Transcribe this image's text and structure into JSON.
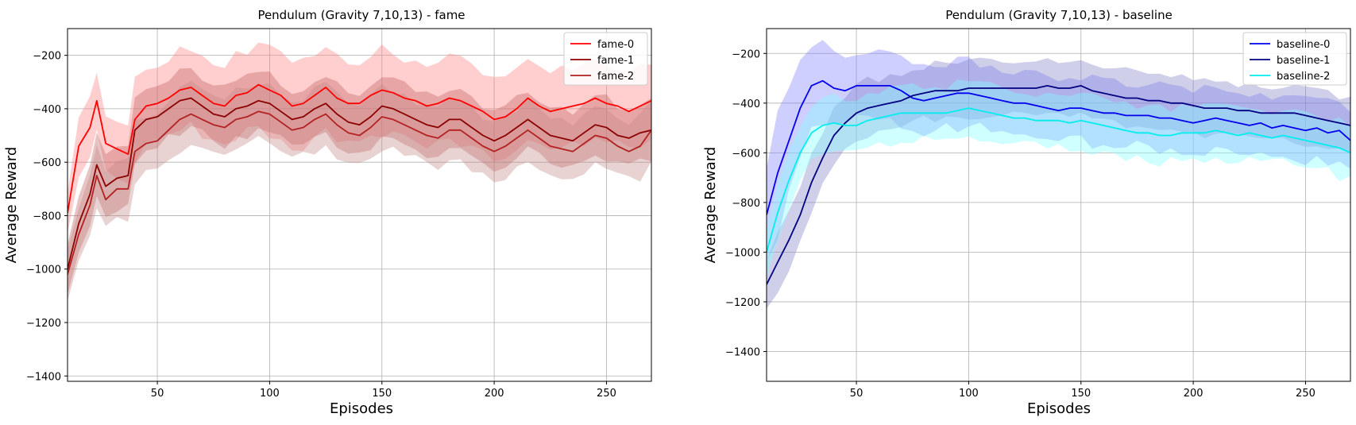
{
  "chart_data": [
    {
      "type": "line",
      "title": "Pendulum (Gravity 7,10,13) - fame",
      "xlabel": "Episodes",
      "ylabel": "Average Reward",
      "xlim": [
        10,
        270
      ],
      "ylim": [
        -1420,
        -100
      ],
      "xticks": [
        50,
        100,
        150,
        200,
        250
      ],
      "yticks": [
        -1400,
        -1200,
        -1000,
        -800,
        -600,
        -400,
        -200
      ],
      "grid": true,
      "legend_position": "top-right",
      "series": [
        {
          "name": "fame-0",
          "color": "#ff0000",
          "band_color": "#ff8080",
          "x": [
            10,
            15,
            20,
            23,
            27,
            32,
            37,
            40,
            45,
            50,
            55,
            60,
            65,
            70,
            75,
            80,
            85,
            90,
            95,
            100,
            105,
            110,
            115,
            120,
            125,
            130,
            135,
            140,
            145,
            150,
            155,
            160,
            165,
            170,
            175,
            180,
            185,
            190,
            195,
            200,
            205,
            210,
            215,
            220,
            225,
            230,
            235,
            240,
            245,
            250,
            255,
            260,
            265,
            270
          ],
          "y": [
            -790,
            -540,
            -470,
            -370,
            -530,
            -550,
            -570,
            -440,
            -390,
            -380,
            -360,
            -330,
            -320,
            -350,
            -380,
            -390,
            -350,
            -340,
            -310,
            -330,
            -350,
            -390,
            -380,
            -350,
            -320,
            -360,
            -380,
            -380,
            -350,
            -330,
            -340,
            -360,
            -370,
            -390,
            -380,
            -360,
            -370,
            -390,
            -410,
            -440,
            -430,
            -400,
            -360,
            -390,
            -410,
            -400,
            -390,
            -380,
            -360,
            -380,
            -390,
            -410,
            -390,
            -370
          ],
          "spread": [
            90,
            110,
            120,
            120,
            110,
            110,
            110,
            140,
            150,
            150,
            150,
            150,
            150,
            150,
            150,
            150,
            150,
            150,
            150,
            150,
            150,
            150,
            150,
            150,
            150,
            150,
            150,
            150,
            150,
            150,
            150,
            150,
            150,
            150,
            150,
            150,
            150,
            150,
            150,
            150,
            150,
            150,
            150,
            150,
            150,
            150,
            150,
            150,
            150,
            150,
            150,
            150,
            150,
            150
          ]
        },
        {
          "name": "fame-1",
          "color": "#8b0000",
          "band_color": "#c06060",
          "x": [
            10,
            15,
            20,
            23,
            27,
            32,
            37,
            40,
            45,
            50,
            55,
            60,
            65,
            70,
            75,
            80,
            85,
            90,
            95,
            100,
            105,
            110,
            115,
            120,
            125,
            130,
            135,
            140,
            145,
            150,
            155,
            160,
            165,
            170,
            175,
            180,
            185,
            190,
            195,
            200,
            205,
            210,
            215,
            220,
            225,
            230,
            235,
            240,
            245,
            250,
            255,
            260,
            265,
            270
          ],
          "y": [
            -1000,
            -830,
            -720,
            -610,
            -690,
            -660,
            -650,
            -480,
            -440,
            -430,
            -400,
            -370,
            -360,
            -390,
            -420,
            -430,
            -400,
            -390,
            -370,
            -380,
            -410,
            -440,
            -430,
            -400,
            -380,
            -420,
            -450,
            -460,
            -430,
            -390,
            -400,
            -420,
            -440,
            -460,
            -470,
            -440,
            -440,
            -470,
            -500,
            -520,
            -500,
            -470,
            -440,
            -470,
            -500,
            -510,
            -520,
            -490,
            -460,
            -470,
            -500,
            -510,
            -490,
            -480
          ]
        },
        {
          "name": "fame-2",
          "color": "#b22222",
          "band_color": "#c48888",
          "x": [
            10,
            15,
            20,
            23,
            27,
            32,
            37,
            40,
            45,
            50,
            55,
            60,
            65,
            70,
            75,
            80,
            85,
            90,
            95,
            100,
            105,
            110,
            115,
            120,
            125,
            130,
            135,
            140,
            145,
            150,
            155,
            160,
            165,
            170,
            175,
            180,
            185,
            190,
            195,
            200,
            205,
            210,
            215,
            220,
            225,
            230,
            235,
            240,
            245,
            250,
            255,
            260,
            265,
            270
          ],
          "y": [
            -1020,
            -870,
            -760,
            -650,
            -740,
            -700,
            -700,
            -560,
            -530,
            -520,
            -480,
            -440,
            -420,
            -440,
            -460,
            -470,
            -440,
            -430,
            -410,
            -420,
            -450,
            -480,
            -470,
            -440,
            -420,
            -460,
            -490,
            -500,
            -470,
            -430,
            -440,
            -460,
            -480,
            -500,
            -510,
            -480,
            -480,
            -510,
            -540,
            -560,
            -540,
            -510,
            -480,
            -510,
            -540,
            -550,
            -560,
            -530,
            -500,
            -510,
            -540,
            -560,
            -540,
            -480
          ]
        }
      ]
    },
    {
      "type": "line",
      "title": "Pendulum (Gravity 7,10,13) - baseline",
      "xlabel": "Episodes",
      "ylabel": "Average Reward",
      "xlim": [
        10,
        270
      ],
      "ylim": [
        -1520,
        -100
      ],
      "xticks": [
        50,
        100,
        150,
        200,
        250
      ],
      "yticks": [
        -1400,
        -1200,
        -1000,
        -800,
        -600,
        -400,
        -200
      ],
      "grid": true,
      "legend_position": "top-right",
      "series": [
        {
          "name": "baseline-0",
          "color": "#0000ee",
          "band_color": "#8080ff",
          "x": [
            10,
            15,
            20,
            25,
            30,
            35,
            40,
            45,
            50,
            55,
            60,
            65,
            70,
            75,
            80,
            85,
            90,
            95,
            100,
            105,
            110,
            115,
            120,
            125,
            130,
            135,
            140,
            145,
            150,
            155,
            160,
            165,
            170,
            175,
            180,
            185,
            190,
            195,
            200,
            205,
            210,
            215,
            220,
            225,
            230,
            235,
            240,
            245,
            250,
            255,
            260,
            265,
            270
          ],
          "y": [
            -850,
            -680,
            -550,
            -420,
            -330,
            -310,
            -340,
            -350,
            -330,
            -330,
            -330,
            -330,
            -350,
            -380,
            -390,
            -380,
            -370,
            -360,
            -360,
            -370,
            -380,
            -390,
            -400,
            -400,
            -410,
            -420,
            -430,
            -420,
            -420,
            -430,
            -440,
            -440,
            -450,
            -450,
            -450,
            -460,
            -460,
            -470,
            -480,
            -470,
            -460,
            -470,
            -480,
            -490,
            -480,
            -500,
            -490,
            -500,
            -510,
            -500,
            -520,
            -510,
            -550
          ],
          "spread": [
            220,
            220,
            200,
            180,
            170,
            160,
            150,
            140,
            130,
            130,
            130,
            130,
            130,
            130,
            130,
            130,
            130,
            130,
            130,
            130,
            130,
            130,
            130,
            130,
            130,
            130,
            130,
            130,
            130,
            130,
            130,
            130,
            130,
            130,
            130,
            130,
            130,
            130,
            130,
            130,
            130,
            130,
            130,
            130,
            130,
            130,
            130,
            130,
            130,
            130,
            130,
            130,
            130
          ]
        },
        {
          "name": "baseline-1",
          "color": "#000080",
          "band_color": "#8080c8",
          "x": [
            10,
            15,
            20,
            25,
            30,
            35,
            40,
            45,
            50,
            55,
            60,
            65,
            70,
            75,
            80,
            85,
            90,
            95,
            100,
            105,
            110,
            115,
            120,
            125,
            130,
            135,
            140,
            145,
            150,
            155,
            160,
            165,
            170,
            175,
            180,
            185,
            190,
            195,
            200,
            205,
            210,
            215,
            220,
            225,
            230,
            235,
            240,
            245,
            250,
            255,
            260,
            265,
            270
          ],
          "y": [
            -1130,
            -1040,
            -950,
            -850,
            -720,
            -620,
            -530,
            -480,
            -440,
            -420,
            -410,
            -400,
            -390,
            -370,
            -360,
            -350,
            -350,
            -350,
            -340,
            -340,
            -340,
            -340,
            -340,
            -340,
            -340,
            -330,
            -340,
            -340,
            -330,
            -350,
            -360,
            -370,
            -380,
            -380,
            -390,
            -390,
            -400,
            -400,
            -410,
            -420,
            -420,
            -420,
            -430,
            -430,
            -440,
            -440,
            -440,
            -440,
            -450,
            -460,
            -470,
            -480,
            -490
          ]
        },
        {
          "name": "baseline-2",
          "color": "#00eeee",
          "band_color": "#80ffff",
          "x": [
            10,
            15,
            20,
            25,
            30,
            35,
            40,
            45,
            50,
            55,
            60,
            65,
            70,
            75,
            80,
            85,
            90,
            95,
            100,
            105,
            110,
            115,
            120,
            125,
            130,
            135,
            140,
            145,
            150,
            155,
            160,
            165,
            170,
            175,
            180,
            185,
            190,
            195,
            200,
            205,
            210,
            215,
            220,
            225,
            230,
            235,
            240,
            245,
            250,
            255,
            260,
            265,
            270
          ],
          "y": [
            -1000,
            -840,
            -710,
            -600,
            -520,
            -490,
            -480,
            -490,
            -490,
            -470,
            -460,
            -450,
            -440,
            -440,
            -440,
            -440,
            -440,
            -430,
            -420,
            -430,
            -440,
            -450,
            -460,
            -460,
            -470,
            -470,
            -470,
            -480,
            -470,
            -480,
            -490,
            -500,
            -510,
            -520,
            -520,
            -530,
            -530,
            -520,
            -520,
            -520,
            -510,
            -520,
            -530,
            -520,
            -530,
            -540,
            -530,
            -540,
            -550,
            -560,
            -570,
            -580,
            -600
          ]
        }
      ]
    }
  ]
}
